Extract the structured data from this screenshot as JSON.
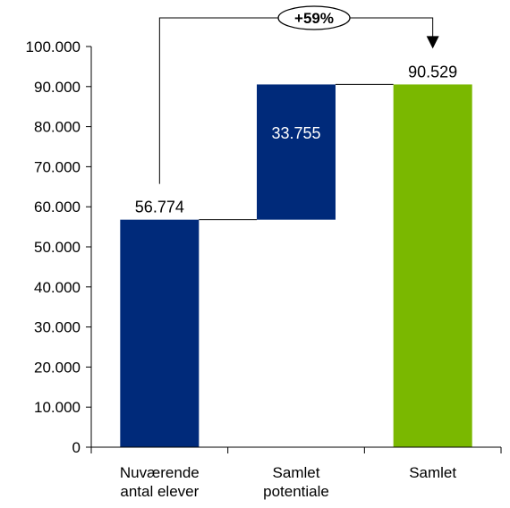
{
  "chart_data": {
    "type": "bar",
    "subtype": "waterfall",
    "categories": [
      [
        "Nuværende",
        "antal elever"
      ],
      [
        "Samlet",
        "potentiale"
      ],
      [
        "Samlet"
      ]
    ],
    "bars": [
      {
        "base": 0,
        "value": 56774,
        "label": "56.774",
        "color": "#002A7A",
        "label_position": "above",
        "label_color": "#000000"
      },
      {
        "base": 56774,
        "value": 33755,
        "label": "33.755",
        "color": "#002A7A",
        "label_position": "inside",
        "label_color": "#ffffff"
      },
      {
        "base": 0,
        "value": 90529,
        "label": "90.529",
        "color": "#7AB800",
        "label_position": "above",
        "label_color": "#000000"
      }
    ],
    "ylim": [
      0,
      100000
    ],
    "yticks": [
      {
        "value": 0,
        "label": "0"
      },
      {
        "value": 10000,
        "label": "10.000"
      },
      {
        "value": 20000,
        "label": "20.000"
      },
      {
        "value": 30000,
        "label": "30.000"
      },
      {
        "value": 40000,
        "label": "40.000"
      },
      {
        "value": 50000,
        "label": "50.000"
      },
      {
        "value": 60000,
        "label": "60.000"
      },
      {
        "value": 70000,
        "label": "70.000"
      },
      {
        "value": 80000,
        "label": "80.000"
      },
      {
        "value": 90000,
        "label": "90.000"
      },
      {
        "value": 100000,
        "label": "100.000"
      }
    ],
    "grid": false,
    "annotation": {
      "label": "+59%",
      "from_bar": 0,
      "to_bar": 2
    }
  }
}
